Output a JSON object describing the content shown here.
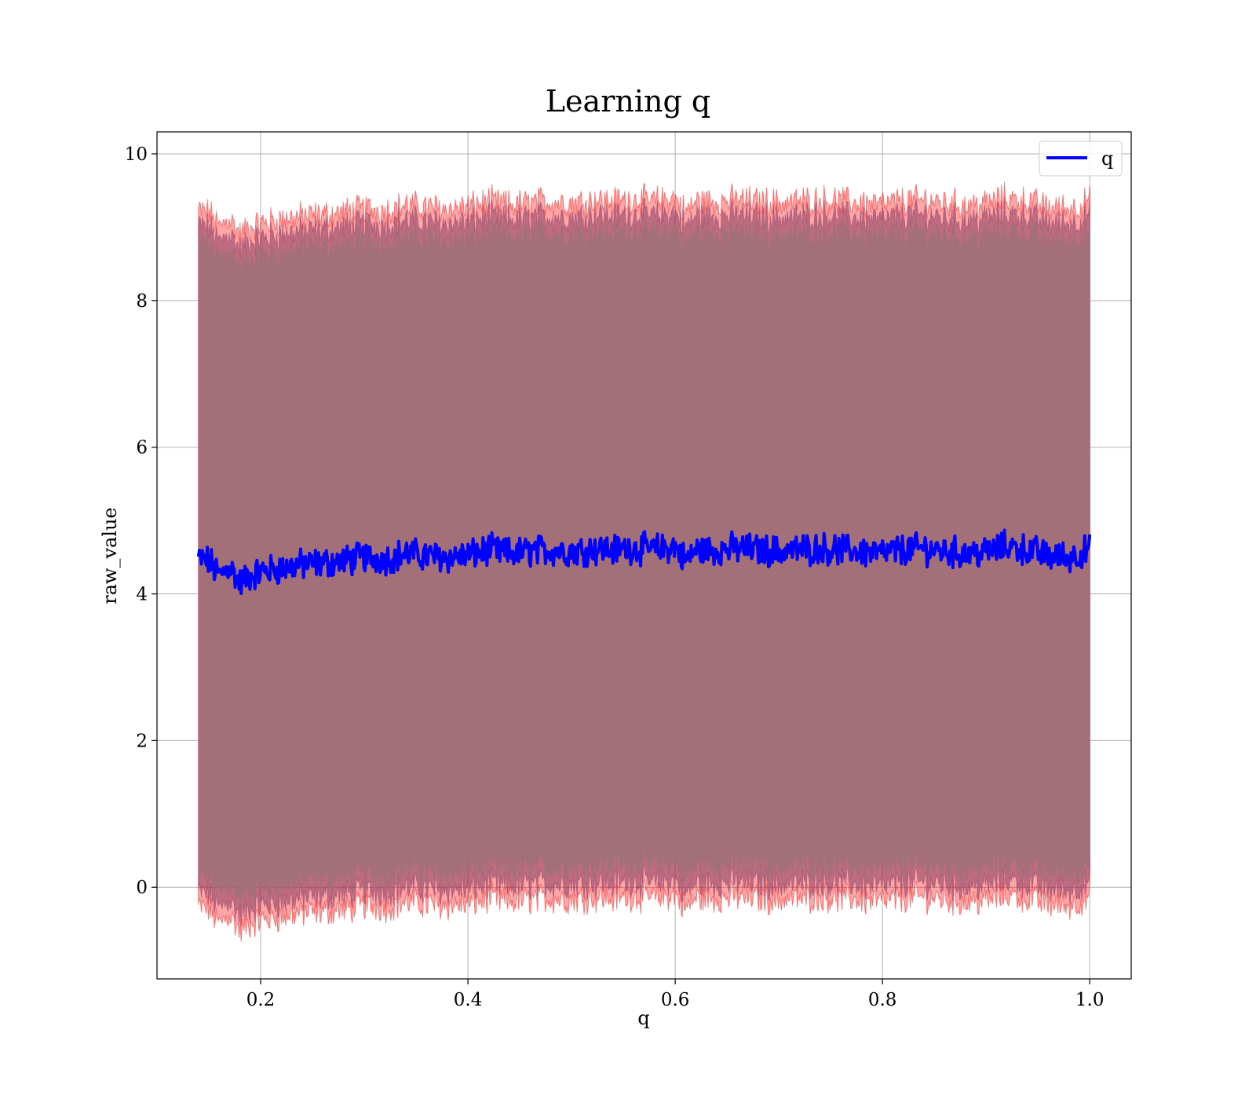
{
  "chart_data": {
    "type": "line",
    "title": "Learning q",
    "xlabel": "q",
    "ylabel": "raw_value",
    "xlim": [
      0.1,
      1.04
    ],
    "ylim": [
      -1.25,
      10.3
    ],
    "xticks": [
      0.2,
      0.4,
      0.6,
      0.8,
      1.0
    ],
    "xtick_labels": [
      "0.2",
      "0.4",
      "0.6",
      "0.8",
      "1.0"
    ],
    "yticks": [
      0,
      2,
      4,
      6,
      8,
      10
    ],
    "ytick_labels": [
      "0",
      "2",
      "4",
      "6",
      "8",
      "10"
    ],
    "grid": true,
    "legend": {
      "position": "top-right",
      "entries": [
        "q"
      ]
    },
    "colors": {
      "line": "#0000ff",
      "band_outer": "#ff0000",
      "band_inner": "#8b3a62",
      "band_core": "#a07077"
    },
    "series": [
      {
        "name": "q",
        "x": [
          0.14,
          0.15,
          0.16,
          0.17,
          0.18,
          0.19,
          0.2,
          0.22,
          0.24,
          0.26,
          0.28,
          0.3,
          0.32,
          0.34,
          0.36,
          0.38,
          0.4,
          0.42,
          0.44,
          0.46,
          0.48,
          0.5,
          0.52,
          0.54,
          0.56,
          0.58,
          0.6,
          0.61,
          0.62,
          0.64,
          0.66,
          0.68,
          0.7,
          0.72,
          0.74,
          0.76,
          0.78,
          0.8,
          0.82,
          0.84,
          0.86,
          0.88,
          0.9,
          0.92,
          0.94,
          0.96,
          0.98,
          1.0
        ],
        "y": [
          4.48,
          4.45,
          4.25,
          4.38,
          4.15,
          4.25,
          4.3,
          4.35,
          4.4,
          4.42,
          4.45,
          4.5,
          4.48,
          4.55,
          4.52,
          4.5,
          4.52,
          4.6,
          4.55,
          4.58,
          4.6,
          4.58,
          4.62,
          4.6,
          4.63,
          4.6,
          4.65,
          4.45,
          4.6,
          4.6,
          4.62,
          4.6,
          4.58,
          4.6,
          4.62,
          4.6,
          4.58,
          4.55,
          4.6,
          4.62,
          4.58,
          4.55,
          4.57,
          4.65,
          4.6,
          4.52,
          4.5,
          4.6
        ],
        "band_halfwidth_outer": 4.75,
        "band_halfwidth_inner": 4.55,
        "band_halfwidth_core": 4.35
      }
    ]
  }
}
